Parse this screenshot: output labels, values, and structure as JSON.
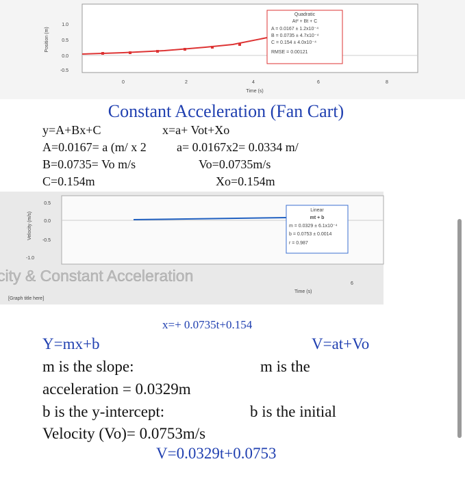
{
  "graph1": {
    "yticks": [
      "1.0",
      "0.5",
      "0.0",
      "-0.5"
    ],
    "ylabel": "Position (m)",
    "xticks": [
      "0",
      "2",
      "4",
      "6",
      "8"
    ],
    "xlabel": "Time (s)",
    "fit": {
      "title": "Quadratic",
      "formula": "At² + Bt + C",
      "lines": [
        "A = 0.0167 ± 1.2x10⁻⁴",
        "B = 0.0735 ± 4.7x10⁻⁴",
        "C = 0.154 ± 4.0x10⁻⁴"
      ],
      "rmse": "RMSE = 0.00121"
    }
  },
  "heading": "Constant Acceleration (Fan Cart)",
  "notes1": [
    [
      "y=A+Bx+C",
      "x=a+ Vot+Xo"
    ],
    [
      "A=0.0167= a (m/ x 2",
      "a= 0.0167x2= 0.0334 m/"
    ],
    [
      "B=0.0735= Vo m/s",
      "Vo=0.0735m/s"
    ],
    [
      "C=0.154m",
      "Xo=0.154m"
    ]
  ],
  "graph2": {
    "yticks": [
      "0.5",
      "0.0",
      "-0.5",
      "-1.0"
    ],
    "ylabel": "Velocity (m/s)",
    "fit": {
      "title": "Linear",
      "formula": "mt + b",
      "lines": [
        "m = 0.0329 ± 6.1x10⁻⁴",
        "b = 0.0753 ± 0.0014",
        "r = 0.987"
      ]
    },
    "overlay": "city & Constant Acceleration",
    "xlabel": "Time (s)",
    "xtick": "6",
    "graph_title": "[Graph title here]"
  },
  "position_eq": "x=+ 0.0735t+0.154",
  "notes2": {
    "left": [
      "Y=mx+b",
      "m is the slope:",
      "acceleration = 0.0329m",
      "b is the y-intercept:",
      "Velocity (Vo)= 0.0753m/s"
    ],
    "right": [
      "V=at+Vo",
      "m is the",
      "b is the initial"
    ],
    "final": "V=0.0329t+0.0753"
  }
}
